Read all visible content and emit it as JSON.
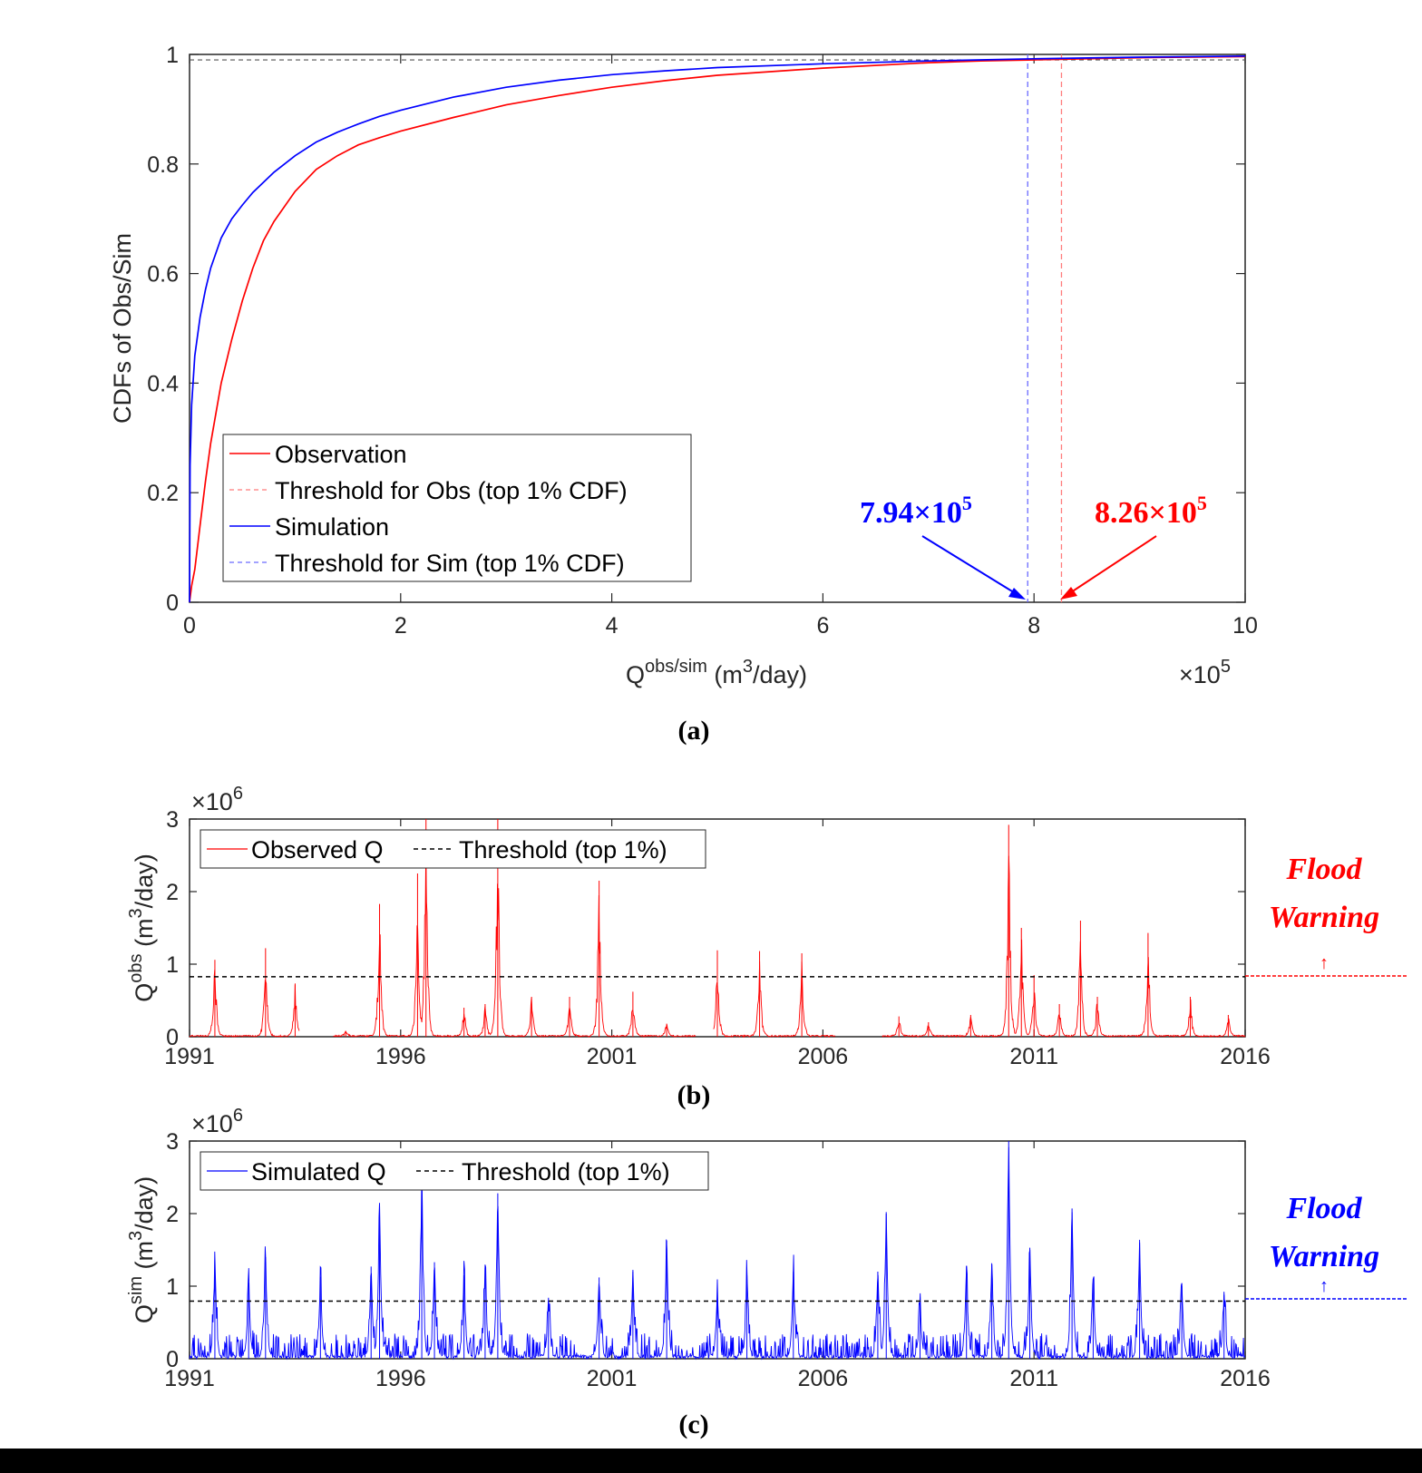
{
  "chart_data": [
    {
      "panel": "a",
      "type": "line",
      "caption": "(a)",
      "xlabel": "Q",
      "xlabel_sup": "obs/sim",
      "xlabel_unit_pre": " (m",
      "xlabel_unit_sup": "3",
      "xlabel_unit_post": "/day)",
      "x_exponent_label": "×10",
      "x_exponent_sup": "5",
      "ylabel": "CDFs of Obs/Sim",
      "xlim": [
        0,
        10
      ],
      "ylim": [
        0,
        1
      ],
      "xticks": [
        "0",
        "2",
        "4",
        "6",
        "8",
        "10"
      ],
      "yticks": [
        "0",
        "0.2",
        "0.4",
        "0.6",
        "0.8",
        "1"
      ],
      "legend_position": "lower-left",
      "legend": [
        "Observation",
        "Threshold for Obs (top 1% CDF)",
        "Simulation",
        "Threshold for Sim (top 1% CDF)"
      ],
      "series": [
        {
          "name": "Observation",
          "color": "#ff0000",
          "x": [
            0,
            0.02,
            0.05,
            0.1,
            0.15,
            0.2,
            0.3,
            0.4,
            0.5,
            0.6,
            0.7,
            0.8,
            1.0,
            1.2,
            1.4,
            1.6,
            1.8,
            2.0,
            2.5,
            3.0,
            3.5,
            4.0,
            4.5,
            5.0,
            6.0,
            7.0,
            7.5,
            8.0,
            9.0,
            10.0
          ],
          "y": [
            0,
            0.03,
            0.06,
            0.14,
            0.22,
            0.29,
            0.4,
            0.48,
            0.55,
            0.61,
            0.66,
            0.695,
            0.75,
            0.79,
            0.815,
            0.835,
            0.848,
            0.86,
            0.885,
            0.908,
            0.925,
            0.94,
            0.952,
            0.962,
            0.975,
            0.985,
            0.988,
            0.99,
            0.994,
            0.996
          ]
        },
        {
          "name": "Simulation",
          "color": "#0000ff",
          "x": [
            0,
            0.005,
            0.02,
            0.05,
            0.1,
            0.15,
            0.2,
            0.3,
            0.4,
            0.5,
            0.6,
            0.8,
            1.0,
            1.2,
            1.4,
            1.6,
            1.8,
            2.0,
            2.5,
            3.0,
            3.5,
            4.0,
            4.5,
            5.0,
            6.0,
            7.0,
            7.5,
            8.0,
            9.0,
            10.0
          ],
          "y": [
            0,
            0.25,
            0.36,
            0.45,
            0.52,
            0.57,
            0.61,
            0.665,
            0.7,
            0.725,
            0.748,
            0.785,
            0.815,
            0.84,
            0.858,
            0.873,
            0.887,
            0.898,
            0.922,
            0.94,
            0.953,
            0.963,
            0.97,
            0.976,
            0.983,
            0.988,
            0.99,
            0.992,
            0.995,
            0.997
          ]
        }
      ],
      "thresholds": [
        {
          "name": "Threshold for Obs (top 1% CDF)",
          "x": 8.26,
          "color": "#ff7b7b"
        },
        {
          "name": "Threshold for Sim (top 1% CDF)",
          "x": 7.94,
          "color": "#6a6aff"
        }
      ],
      "hline_y": 0.99,
      "annotations": [
        {
          "text": "7.94×10",
          "sup": "5",
          "color": "#0000ff"
        },
        {
          "text": "8.26×10",
          "sup": "5",
          "color": "#ff0000"
        }
      ]
    },
    {
      "panel": "b",
      "type": "line",
      "caption": "(b)",
      "ylabel": "Q",
      "ylabel_sup": "obs",
      "ylabel_unit_pre": " (m",
      "ylabel_unit_sup": "3",
      "ylabel_unit_post": "/day)",
      "y_exponent_label": "×10",
      "y_exponent_sup": "6",
      "xlim": [
        1991,
        2016
      ],
      "ylim": [
        0,
        3
      ],
      "xticks": [
        "1991",
        "1996",
        "2001",
        "2006",
        "2011",
        "2016"
      ],
      "yticks": [
        "0",
        "1",
        "2",
        "3"
      ],
      "legend_position": "top-left",
      "legend": [
        "Observed Q",
        "Threshold (top 1%)"
      ],
      "threshold": 0.826,
      "series_color": "#ff0000",
      "gaps": [
        [
          1993.6,
          1994.4
        ],
        [
          2003.0,
          2003.4
        ],
        [
          2006.3,
          2007.4
        ]
      ],
      "peaks": [
        {
          "x": 1991.6,
          "y": 1.06
        },
        {
          "x": 1992.8,
          "y": 1.22
        },
        {
          "x": 1993.5,
          "y": 0.72
        },
        {
          "x": 1994.7,
          "y": 0.08
        },
        {
          "x": 1995.5,
          "y": 1.83
        },
        {
          "x": 1996.4,
          "y": 2.25
        },
        {
          "x": 1996.6,
          "y": 3.0
        },
        {
          "x": 1997.5,
          "y": 0.4
        },
        {
          "x": 1998.0,
          "y": 0.45
        },
        {
          "x": 1998.3,
          "y": 3.0
        },
        {
          "x": 1999.1,
          "y": 0.55
        },
        {
          "x": 2000.0,
          "y": 0.55
        },
        {
          "x": 2000.7,
          "y": 2.15
        },
        {
          "x": 2001.5,
          "y": 0.62
        },
        {
          "x": 2002.3,
          "y": 0.18
        },
        {
          "x": 2003.5,
          "y": 1.19
        },
        {
          "x": 2004.5,
          "y": 1.18
        },
        {
          "x": 2005.5,
          "y": 1.15
        },
        {
          "x": 2007.8,
          "y": 0.28
        },
        {
          "x": 2008.5,
          "y": 0.2
        },
        {
          "x": 2009.5,
          "y": 0.3
        },
        {
          "x": 2010.4,
          "y": 2.92
        },
        {
          "x": 2010.7,
          "y": 1.5
        },
        {
          "x": 2011.0,
          "y": 0.85
        },
        {
          "x": 2011.6,
          "y": 0.45
        },
        {
          "x": 2012.1,
          "y": 1.6
        },
        {
          "x": 2012.5,
          "y": 0.55
        },
        {
          "x": 2013.7,
          "y": 1.43
        },
        {
          "x": 2014.7,
          "y": 0.55
        },
        {
          "x": 2015.6,
          "y": 0.3
        }
      ],
      "side_label": [
        "Flood",
        "Warning"
      ],
      "side_color": "#ff0000",
      "arrow_glyph": "↑"
    },
    {
      "panel": "c",
      "type": "line",
      "caption": "(c)",
      "ylabel": "Q",
      "ylabel_sup": "sim",
      "ylabel_unit_pre": " (m",
      "ylabel_unit_sup": "3",
      "ylabel_unit_post": "/day)",
      "y_exponent_label": "×10",
      "y_exponent_sup": "6",
      "xlim": [
        1991,
        2016
      ],
      "ylim": [
        0,
        3
      ],
      "xticks": [
        "1991",
        "1996",
        "2001",
        "2006",
        "2011",
        "2016"
      ],
      "yticks": [
        "0",
        "1",
        "2",
        "3"
      ],
      "legend_position": "top-left",
      "legend": [
        "Simulated Q",
        "Threshold (top 1%)"
      ],
      "threshold": 0.794,
      "series_color": "#0000ff",
      "peaks": [
        {
          "x": 1991.6,
          "y": 1.35
        },
        {
          "x": 1992.4,
          "y": 1.05
        },
        {
          "x": 1992.8,
          "y": 1.4
        },
        {
          "x": 1994.1,
          "y": 1.13
        },
        {
          "x": 1995.3,
          "y": 1.27
        },
        {
          "x": 1995.5,
          "y": 2.1
        },
        {
          "x": 1996.5,
          "y": 2.3
        },
        {
          "x": 1996.8,
          "y": 1.33
        },
        {
          "x": 1997.5,
          "y": 1.15
        },
        {
          "x": 1998.0,
          "y": 1.25
        },
        {
          "x": 1998.3,
          "y": 2.28
        },
        {
          "x": 1999.5,
          "y": 0.8
        },
        {
          "x": 2000.7,
          "y": 1.12
        },
        {
          "x": 2001.5,
          "y": 1.2
        },
        {
          "x": 2002.3,
          "y": 1.63
        },
        {
          "x": 2003.5,
          "y": 0.95
        },
        {
          "x": 2004.2,
          "y": 1.15
        },
        {
          "x": 2005.3,
          "y": 1.2
        },
        {
          "x": 2007.3,
          "y": 1.2
        },
        {
          "x": 2007.5,
          "y": 2.0
        },
        {
          "x": 2008.3,
          "y": 0.8
        },
        {
          "x": 2009.4,
          "y": 1.28
        },
        {
          "x": 2010.0,
          "y": 1.3
        },
        {
          "x": 2010.4,
          "y": 3.0
        },
        {
          "x": 2010.9,
          "y": 1.53
        },
        {
          "x": 2011.9,
          "y": 2.07
        },
        {
          "x": 2012.4,
          "y": 1.1
        },
        {
          "x": 2013.5,
          "y": 1.6
        },
        {
          "x": 2014.5,
          "y": 1.0
        },
        {
          "x": 2015.5,
          "y": 0.88
        }
      ],
      "side_label": [
        "Flood",
        "Warning"
      ],
      "side_color": "#0000ff",
      "arrow_glyph": "↑"
    }
  ]
}
